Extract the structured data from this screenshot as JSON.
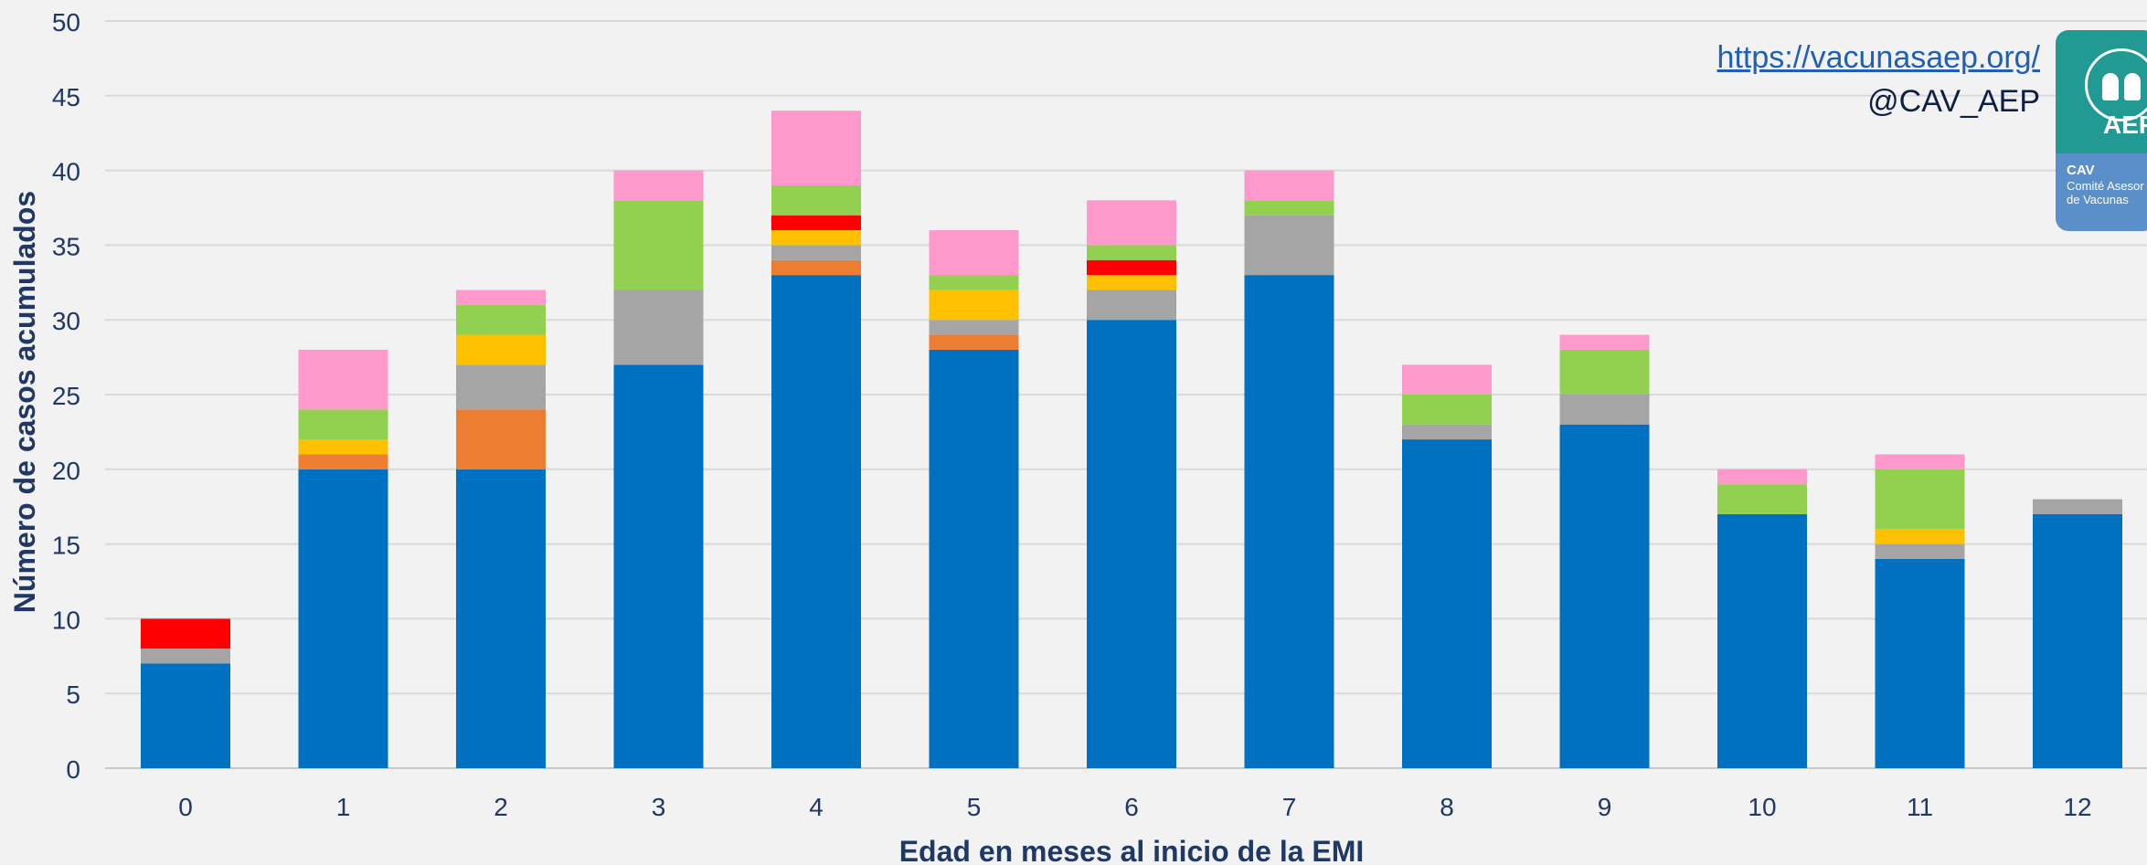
{
  "source": {
    "url": "https://vacunasaep.org/",
    "handle": "@CAV_AEP"
  },
  "logo": {
    "brand": "AEP",
    "org": "CAV",
    "subtitle": "Comité Asesor de Vacunas"
  },
  "chart_data": {
    "type": "bar",
    "stacked": true,
    "title": "",
    "xlabel": "Edad en meses al inicio de la EMI",
    "ylabel": "Número de casos acumulados",
    "ylim": [
      0,
      50
    ],
    "yticks": [
      0,
      5,
      10,
      15,
      20,
      25,
      30,
      35,
      40,
      45,
      50
    ],
    "grid": true,
    "categories": [
      "0",
      "1",
      "2",
      "3",
      "4",
      "5",
      "6",
      "7",
      "8",
      "9",
      "10",
      "11",
      "12"
    ],
    "series": [
      {
        "color": "#0070c0",
        "values": [
          7,
          20,
          20,
          27,
          33,
          28,
          30,
          33,
          22,
          23,
          17,
          14,
          17
        ]
      },
      {
        "color": "#ed7d31",
        "values": [
          0,
          1,
          4,
          0,
          1,
          1,
          0,
          0,
          0,
          0,
          0,
          0,
          0
        ]
      },
      {
        "color": "#a5a5a5",
        "values": [
          1,
          0,
          3,
          5,
          1,
          1,
          2,
          4,
          1,
          2,
          0,
          1,
          1
        ]
      },
      {
        "color": "#ffc000",
        "values": [
          0,
          1,
          2,
          0,
          1,
          2,
          1,
          0,
          0,
          0,
          0,
          1,
          0
        ]
      },
      {
        "color": "#ff0000",
        "values": [
          2,
          0,
          0,
          0,
          1,
          0,
          1,
          0,
          0,
          0,
          0,
          0,
          0
        ]
      },
      {
        "color": "#92d050",
        "values": [
          0,
          2,
          2,
          6,
          2,
          1,
          1,
          1,
          2,
          3,
          2,
          4,
          0
        ]
      },
      {
        "color": "#ff99cc",
        "values": [
          0,
          4,
          1,
          2,
          5,
          3,
          3,
          2,
          2,
          1,
          1,
          1,
          0
        ]
      }
    ]
  }
}
